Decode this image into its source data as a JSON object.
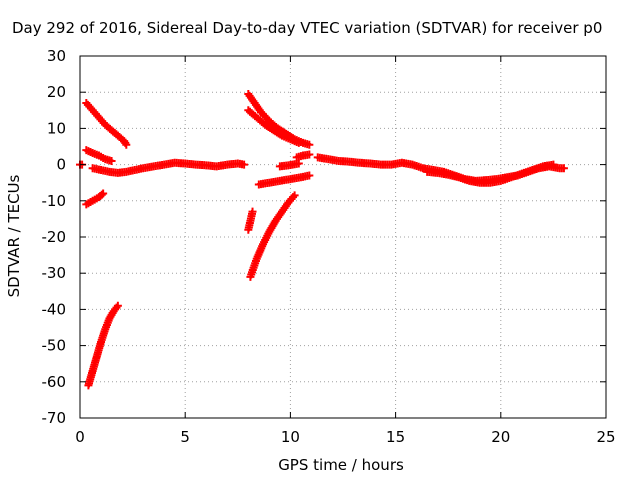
{
  "chart_data": {
    "type": "scatter",
    "title": "Day 292 of 2016, Sidereal Day-to-day VTEC variation (SDTVAR) for receiver p0",
    "xlabel": "GPS time / hours",
    "ylabel": "SDTVAR / TECUs",
    "xlim": [
      0,
      25
    ],
    "ylim": [
      -70,
      30
    ],
    "xticks": [
      0,
      5,
      10,
      15,
      20,
      25
    ],
    "yticks": [
      30,
      20,
      10,
      0,
      -10,
      -20,
      -30,
      -40,
      -50,
      -60,
      -70
    ],
    "xtick_labels": [
      "0",
      "5",
      "10",
      "15",
      "20",
      "25"
    ],
    "ytick_labels": [
      "30",
      "20",
      "10",
      "0",
      "-10",
      "-20",
      "-30",
      "-40",
      "-50",
      "-60",
      "-70"
    ],
    "grid": true,
    "marker": "plus",
    "color": "#ff0000",
    "series": [
      {
        "x": [
          0.3,
          0.6,
          0.9,
          1.2,
          1.5,
          1.8,
          2.1,
          2.2
        ],
        "y": [
          17,
          15,
          13,
          11,
          9.5,
          8,
          6.5,
          5.5
        ]
      },
      {
        "x": [
          0.3,
          0.6,
          0.9,
          1.2,
          1.5
        ],
        "y": [
          4,
          3.2,
          2.5,
          1.5,
          1
        ]
      },
      {
        "x": [
          0.3,
          0.6,
          0.9,
          1.1
        ],
        "y": [
          -11,
          -10,
          -9,
          -8
        ]
      },
      {
        "x": [
          0.4,
          0.6,
          0.8,
          1.0,
          1.2,
          1.4,
          1.6,
          1.8
        ],
        "y": [
          -61,
          -57,
          -53,
          -49,
          -45.5,
          -42.5,
          -40.5,
          -39
        ]
      },
      {
        "x": [
          0.0,
          0.1
        ],
        "y": [
          0,
          0
        ]
      },
      {
        "x": [
          0.6,
          1.0,
          1.4,
          1.8,
          2.2,
          2.6,
          3.0,
          3.5,
          4.0,
          4.5,
          5.0,
          5.5,
          6.0,
          6.5,
          7.0,
          7.5,
          7.8
        ],
        "y": [
          -1,
          -1.5,
          -2,
          -2.3,
          -2,
          -1.5,
          -1,
          -0.5,
          0,
          0.5,
          0.3,
          0,
          -0.2,
          -0.5,
          0,
          0.3,
          0
        ]
      },
      {
        "x": [
          8.0,
          8.3,
          8.6,
          9.0,
          9.4,
          9.8,
          10.2,
          10.6,
          10.9
        ],
        "y": [
          19.5,
          17,
          14.5,
          12,
          10,
          8.5,
          7,
          6,
          5.5
        ]
      },
      {
        "x": [
          8.0,
          8.4,
          8.8,
          9.2,
          9.6,
          10.0,
          10.4
        ],
        "y": [
          15,
          13,
          11,
          9.5,
          8,
          7,
          6
        ]
      },
      {
        "x": [
          8.0,
          8.1,
          8.2
        ],
        "y": [
          -18,
          -15.5,
          -13
        ]
      },
      {
        "x": [
          8.1,
          8.4,
          8.7,
          9.0,
          9.3,
          9.6,
          9.9,
          10.2
        ],
        "y": [
          -31,
          -26,
          -22,
          -18.5,
          -15.5,
          -13,
          -10.5,
          -8.5
        ]
      },
      {
        "x": [
          8.5,
          9.0,
          9.5,
          10.0,
          10.5,
          10.9
        ],
        "y": [
          -5.5,
          -5,
          -4.5,
          -4,
          -3.5,
          -3
        ]
      },
      {
        "x": [
          9.5,
          9.8,
          10.1,
          10.4
        ],
        "y": [
          -0.5,
          -0.3,
          0,
          0.3
        ]
      },
      {
        "x": [
          10.3,
          10.6,
          10.9
        ],
        "y": [
          2,
          2.5,
          2.8
        ]
      },
      {
        "x": [
          11.3,
          11.8,
          12.3,
          12.8,
          13.3,
          13.8,
          14.3,
          14.8,
          15.3,
          15.8,
          16.3,
          16.8,
          17.3,
          17.8,
          18.3,
          18.8,
          19.3,
          19.8,
          20.3,
          20.8,
          21.3,
          21.8,
          22.3,
          22.8,
          23.0
        ],
        "y": [
          2,
          1.5,
          1,
          0.8,
          0.5,
          0.3,
          0,
          0,
          0.5,
          0,
          -1,
          -1.5,
          -2,
          -3,
          -4,
          -4.5,
          -4.3,
          -4,
          -3.5,
          -3,
          -2,
          -1,
          -0.5,
          -1,
          -1
        ]
      },
      {
        "x": [
          16.5,
          17.0,
          17.5,
          18.0,
          18.5,
          19.0,
          19.5,
          20.0,
          20.5,
          21.0,
          21.5,
          22.0,
          22.5
        ],
        "y": [
          -2,
          -2.3,
          -2.8,
          -3.5,
          -4.5,
          -5,
          -5,
          -4.5,
          -3.5,
          -2.5,
          -1.5,
          -0.5,
          0
        ]
      }
    ]
  }
}
